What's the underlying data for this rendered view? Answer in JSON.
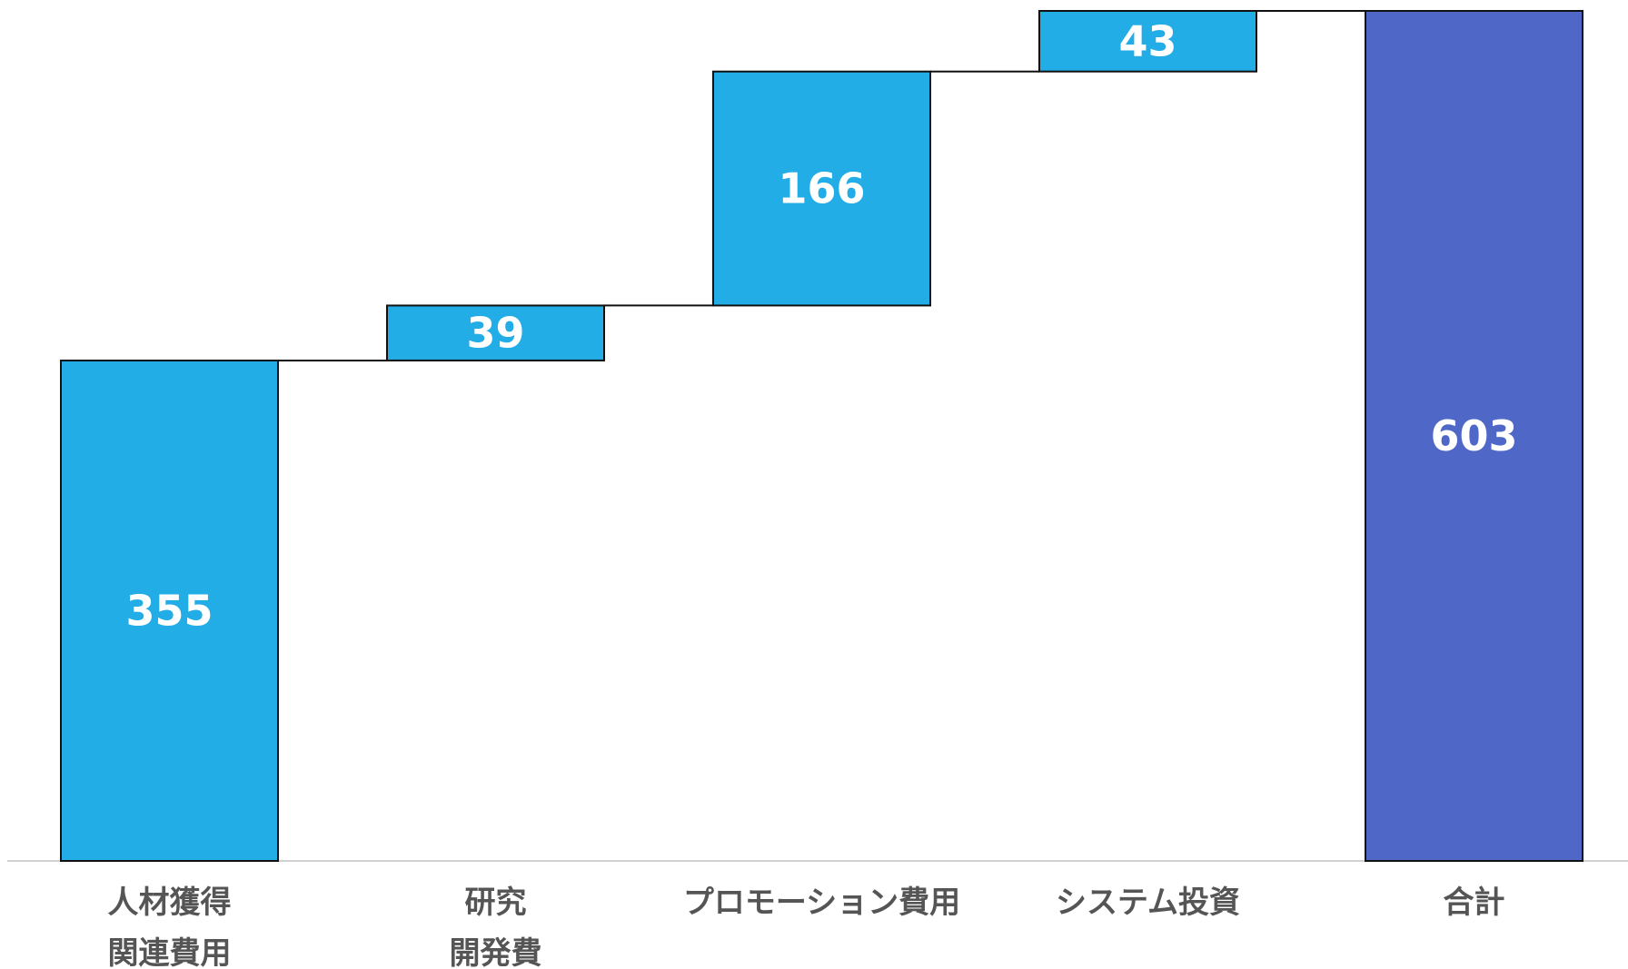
{
  "chart_data": {
    "type": "bar",
    "subtype": "waterfall",
    "categories": [
      [
        "人材獲得",
        "関連費用"
      ],
      [
        "研究",
        "開発費"
      ],
      [
        "プロモーション費用"
      ],
      [
        "システム投資"
      ],
      [
        "合計"
      ]
    ],
    "values": [
      355,
      39,
      166,
      43,
      603
    ],
    "is_total": [
      false,
      false,
      false,
      false,
      true
    ],
    "data_labels": [
      "355",
      "39",
      "166",
      "43",
      "603"
    ],
    "title": "",
    "xlabel": "",
    "ylabel": "",
    "ylim": [
      0,
      603
    ],
    "grid": false,
    "legend": "none",
    "colors": {
      "increment": "#22ade6",
      "total": "#4f67c6",
      "outline": "#111111",
      "connector": "#111111",
      "axis": "#d0d0d0",
      "category_text": "#555555",
      "value_text": "#ffffff"
    }
  }
}
